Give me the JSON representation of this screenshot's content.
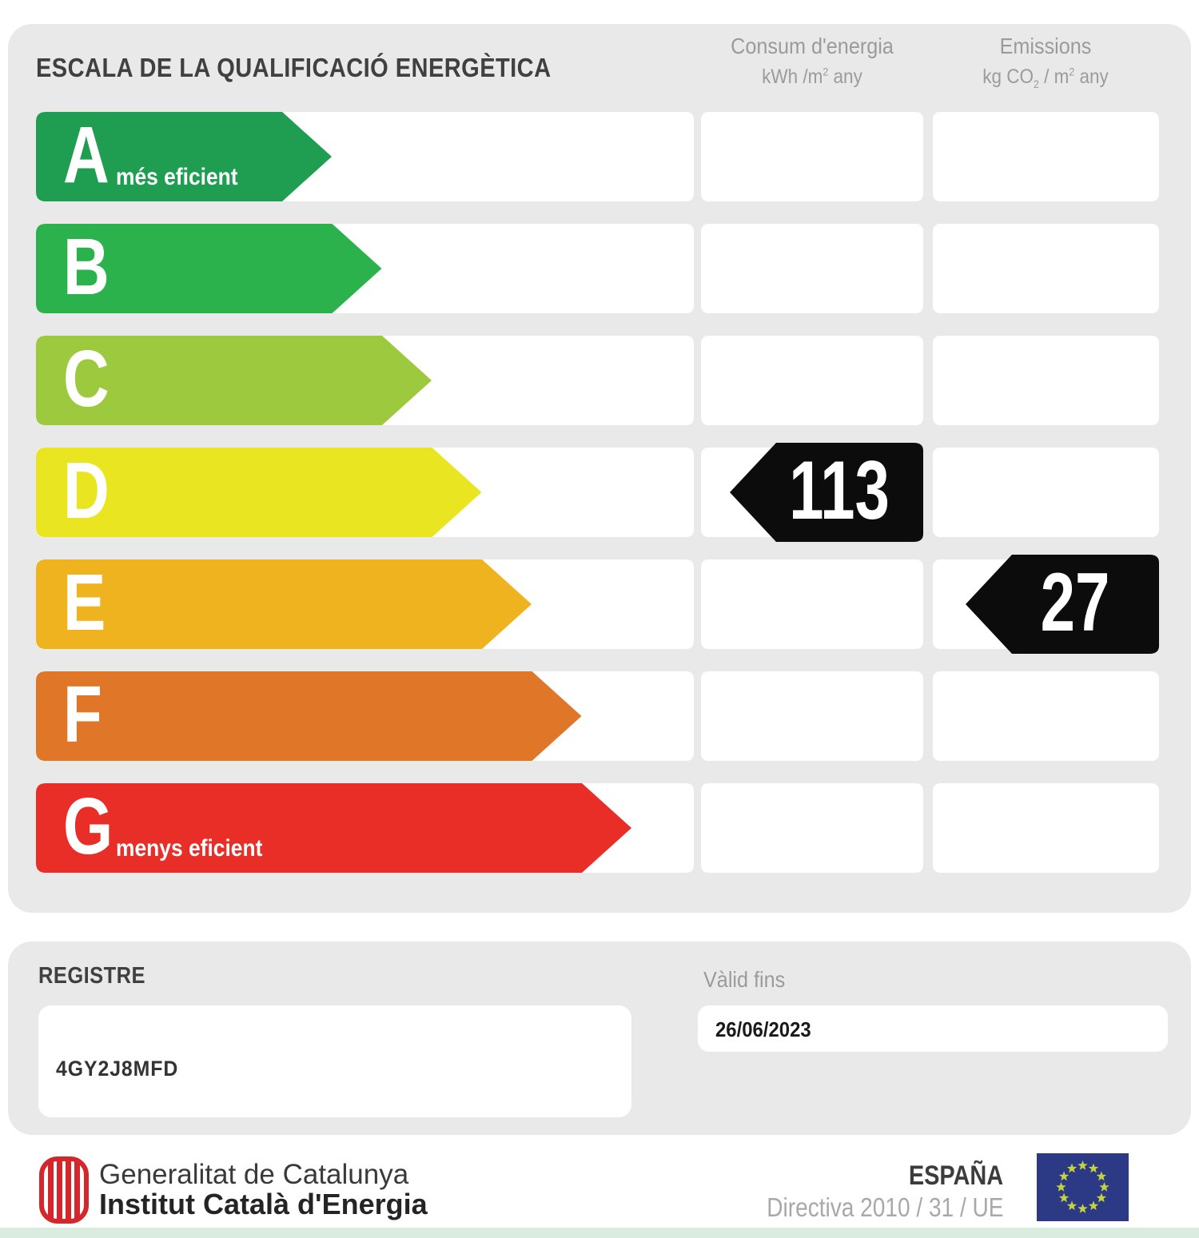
{
  "chart_data": {
    "type": "bar",
    "title": "ESCALA DE LA QUALIFICACIÓ ENERGÈTICA",
    "orientation": "horizontal",
    "categories": [
      "A",
      "B",
      "C",
      "D",
      "E",
      "F",
      "G"
    ],
    "category_notes": {
      "A": "més eficient",
      "G": "menys eficient"
    },
    "bar_colors": [
      "#1f9e52",
      "#2bb24c",
      "#9cc93e",
      "#e9e621",
      "#efb320",
      "#e07728",
      "#e92e27"
    ],
    "bar_lengths_relative": [
      1.0,
      1.17,
      1.34,
      1.51,
      1.68,
      1.85,
      2.02
    ],
    "columns": [
      "Consum d'energia kWh/m² any",
      "Emissions kg CO₂/m² any"
    ],
    "values": [
      {
        "category": "D",
        "column": "Consum d'energia kWh/m² any",
        "value": 113
      },
      {
        "category": "E",
        "column": "Emissions kg CO₂/m² any",
        "value": 27
      }
    ],
    "legend_position": "none",
    "grid": false
  },
  "scale": {
    "title": "ESCALA DE LA QUALIFICACIÓ ENERGÈTICA",
    "columns": {
      "consumption": {
        "title": "Consum d'energia",
        "unit_parts": [
          "kWh /m",
          "2",
          " any"
        ]
      },
      "emissions": {
        "title": "Emissions",
        "unit_parts": [
          "kg CO",
          "2",
          " / m",
          "2",
          " any"
        ]
      }
    },
    "ratings": [
      {
        "letter": "A",
        "note": "més eficient",
        "color": "#1f9e52"
      },
      {
        "letter": "B",
        "color": "#2bb24c"
      },
      {
        "letter": "C",
        "color": "#9cc93e"
      },
      {
        "letter": "D",
        "color": "#e9e621"
      },
      {
        "letter": "E",
        "color": "#efb320"
      },
      {
        "letter": "F",
        "color": "#e07728"
      },
      {
        "letter": "G",
        "note": "menys eficient",
        "color": "#e92e27"
      }
    ],
    "indicators": [
      {
        "column": "consumption",
        "letter": "D",
        "value": "113"
      },
      {
        "column": "emissions",
        "letter": "E",
        "value": "27"
      }
    ]
  },
  "registre": {
    "label": "REGISTRE",
    "value": "4GY2J8MFD"
  },
  "validity": {
    "label": "Vàlid fins",
    "value": "26/06/2023"
  },
  "footer": {
    "org_line1": "Generalitat de Catalunya",
    "org_line2": "Institut Català d'Energia",
    "country": "ESPAÑA",
    "directive": "Directiva 2010 / 31 / UE"
  },
  "colors": {
    "panel_bg": "#e9e9e9",
    "indicator_bg": "#0c0c0c",
    "eu_flag_blue": "#2c3a85",
    "eu_star": "#c5d23e",
    "logo_red": "#d4262b",
    "bottom_strip": "#d9ecdf"
  }
}
